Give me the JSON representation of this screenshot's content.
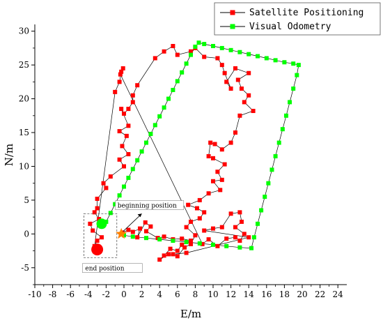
{
  "chart_data": {
    "type": "scatter",
    "title": "",
    "xlabel": "E/m",
    "ylabel": "N/m",
    "xlim": [
      -10,
      25
    ],
    "ylim": [
      -7.5,
      31
    ],
    "xticks": [
      -10,
      -8,
      -6,
      -4,
      -2,
      0,
      2,
      4,
      6,
      8,
      10,
      12,
      14,
      16,
      18,
      20,
      22,
      24
    ],
    "yticks": [
      -5,
      0,
      5,
      10,
      15,
      20,
      25,
      30
    ],
    "grid": false,
    "legend": {
      "placement": "top-right"
    },
    "series": [
      {
        "name": "Satellite Positioning",
        "color": "#ff0000",
        "marker": "square",
        "points": [
          [
            -0.2,
            0.2
          ],
          [
            0.5,
            0.6
          ],
          [
            1.0,
            0.3
          ],
          [
            1.8,
            0.8
          ],
          [
            1.5,
            -0.5
          ],
          [
            2.4,
            1.7
          ],
          [
            3.0,
            1.1
          ],
          [
            2.5,
            0.4
          ],
          [
            3.8,
            -0.6
          ],
          [
            4.5,
            -0.4
          ],
          [
            5.5,
            -0.8
          ],
          [
            6.5,
            -0.7
          ],
          [
            7.5,
            -1.0
          ],
          [
            6.5,
            -1.6
          ],
          [
            6.0,
            -2.5
          ],
          [
            5.2,
            -2.2
          ],
          [
            4.5,
            -3.2
          ],
          [
            4.0,
            -3.8
          ],
          [
            5.0,
            -3.0
          ],
          [
            6.0,
            -3.3
          ],
          [
            6.8,
            -2.0
          ],
          [
            7.5,
            -1.5
          ],
          [
            8.0,
            -0.2
          ],
          [
            7.0,
            1.0
          ],
          [
            7.5,
            1.8
          ],
          [
            8.5,
            2.3
          ],
          [
            9.0,
            3.2
          ],
          [
            8.2,
            3.8
          ],
          [
            7.2,
            4.3
          ],
          [
            8.5,
            5.0
          ],
          [
            9.5,
            6.0
          ],
          [
            10.8,
            6.5
          ],
          [
            10.0,
            7.8
          ],
          [
            11.0,
            8.0
          ],
          [
            10.5,
            9.2
          ],
          [
            11.3,
            10.3
          ],
          [
            10.0,
            11.2
          ],
          [
            9.5,
            11.5
          ],
          [
            9.7,
            13.5
          ],
          [
            10.2,
            13.3
          ],
          [
            11.0,
            12.5
          ],
          [
            12.0,
            13.5
          ],
          [
            12.5,
            15.0
          ],
          [
            13.0,
            17.5
          ],
          [
            14.5,
            18.2
          ],
          [
            13.5,
            19.5
          ],
          [
            14.0,
            20.5
          ],
          [
            13.2,
            21.5
          ],
          [
            12.8,
            22.8
          ],
          [
            14.0,
            23.8
          ],
          [
            12.5,
            24.5
          ],
          [
            11.5,
            22.5
          ],
          [
            12.0,
            21.5
          ],
          [
            11.3,
            23.8
          ],
          [
            11.0,
            25.0
          ],
          [
            10.5,
            26.0
          ],
          [
            9.0,
            26.2
          ],
          [
            8.0,
            27.5
          ],
          [
            7.5,
            27.0
          ],
          [
            6.0,
            26.5
          ],
          [
            5.5,
            27.8
          ],
          [
            4.5,
            27.0
          ],
          [
            3.5,
            26.0
          ],
          [
            1.5,
            22.0
          ],
          [
            1.0,
            20.5
          ],
          [
            1.0,
            19.5
          ],
          [
            0.5,
            18.5
          ],
          [
            0.0,
            17.8
          ],
          [
            -0.3,
            18.5
          ],
          [
            0.5,
            16.0
          ],
          [
            -0.5,
            15.2
          ],
          [
            0.3,
            14.5
          ],
          [
            -0.2,
            13.0
          ],
          [
            0.5,
            11.8
          ],
          [
            -0.5,
            11.0
          ],
          [
            0.0,
            10.0
          ],
          [
            -1.5,
            8.5
          ],
          [
            -2.3,
            7.5
          ],
          [
            -2.0,
            6.8
          ],
          [
            -3.0,
            5.2
          ],
          [
            -3.0,
            3.8
          ],
          [
            -3.3,
            3.2
          ],
          [
            -2.8,
            2.2
          ],
          [
            -3.8,
            1.5
          ],
          [
            -3.5,
            0.5
          ],
          [
            -2.5,
            -0.5
          ],
          [
            -3.0,
            -1.0
          ],
          [
            -3.3,
            -1.8
          ],
          [
            -1.0,
            21.0
          ],
          [
            -0.5,
            22.5
          ],
          [
            -0.3,
            24.0
          ],
          [
            -0.1,
            24.5
          ],
          [
            -0.4,
            23.6
          ],
          [
            8.8,
            -1.5
          ],
          [
            9.5,
            -0.8
          ],
          [
            10.5,
            -1.8
          ],
          [
            11.5,
            -0.7
          ],
          [
            12.5,
            -0.5
          ],
          [
            13.0,
            -1.0
          ],
          [
            13.5,
            0.0
          ],
          [
            12.5,
            1.0
          ],
          [
            13.2,
            1.8
          ],
          [
            13.0,
            3.2
          ],
          [
            12.0,
            3.0
          ],
          [
            11.0,
            1.0
          ],
          [
            10.0,
            0.8
          ],
          [
            9.0,
            0.5
          ],
          [
            14.0,
            -0.5
          ],
          [
            7.0,
            -2.8
          ],
          [
            5.5,
            -3.0
          ]
        ]
      },
      {
        "name": "Visual Odometry",
        "color": "#00ff00",
        "marker": "square",
        "points": [
          [
            -2.0,
            1.8
          ],
          [
            -1.5,
            3.1
          ],
          [
            -1.0,
            4.4
          ],
          [
            -0.5,
            5.7
          ],
          [
            0.0,
            7.0
          ],
          [
            0.5,
            8.3
          ],
          [
            1.0,
            9.6
          ],
          [
            1.5,
            10.9
          ],
          [
            2.0,
            12.2
          ],
          [
            2.5,
            13.5
          ],
          [
            3.0,
            14.8
          ],
          [
            3.5,
            16.1
          ],
          [
            4.0,
            17.4
          ],
          [
            4.5,
            18.7
          ],
          [
            5.0,
            20.0
          ],
          [
            5.5,
            21.3
          ],
          [
            6.0,
            22.6
          ],
          [
            6.5,
            23.9
          ],
          [
            7.0,
            25.2
          ],
          [
            7.5,
            26.5
          ],
          [
            8.0,
            27.7
          ],
          [
            8.4,
            28.3
          ],
          [
            9.0,
            28.1
          ],
          [
            10.0,
            27.8
          ],
          [
            11.0,
            27.5
          ],
          [
            12.0,
            27.2
          ],
          [
            13.0,
            26.9
          ],
          [
            14.0,
            26.6
          ],
          [
            15.0,
            26.3
          ],
          [
            16.0,
            26.0
          ],
          [
            17.0,
            25.7
          ],
          [
            18.0,
            25.4
          ],
          [
            19.0,
            25.2
          ],
          [
            19.6,
            25.0
          ],
          [
            19.4,
            23.5
          ],
          [
            19.0,
            21.5
          ],
          [
            18.6,
            19.5
          ],
          [
            18.2,
            17.5
          ],
          [
            17.8,
            15.5
          ],
          [
            17.4,
            13.5
          ],
          [
            17.0,
            11.5
          ],
          [
            16.6,
            9.5
          ],
          [
            16.2,
            7.5
          ],
          [
            15.8,
            5.5
          ],
          [
            15.4,
            3.5
          ],
          [
            15.0,
            1.5
          ],
          [
            14.6,
            -0.5
          ],
          [
            14.3,
            -2.1
          ],
          [
            13.0,
            -2.0
          ],
          [
            11.5,
            -1.8
          ],
          [
            10.0,
            -1.6
          ],
          [
            8.5,
            -1.4
          ],
          [
            7.0,
            -1.2
          ],
          [
            5.5,
            -1.0
          ],
          [
            4.0,
            -0.8
          ],
          [
            2.5,
            -0.6
          ],
          [
            1.0,
            -0.4
          ],
          [
            0.0,
            -0.2
          ],
          [
            -0.3,
            0.0
          ]
        ]
      }
    ],
    "annotations": [
      {
        "label": "beginning position",
        "point": [
          -0.3,
          0.0
        ],
        "marker": "star",
        "color": "#ff8000"
      },
      {
        "label": "end position",
        "point": [
          -2.5,
          1.5
        ],
        "marker": "circle",
        "color": "#00ff00",
        "secondary_point": [
          -3.0,
          -2.3
        ],
        "secondary_color": "#ff0000"
      }
    ]
  }
}
